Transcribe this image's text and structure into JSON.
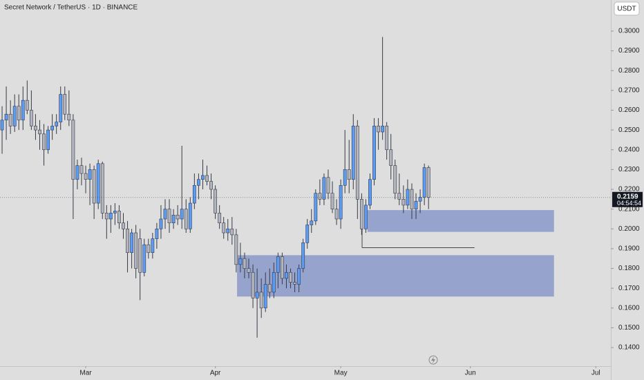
{
  "chart_data": {
    "type": "candlestick",
    "title": "Secret Network / TetherUS · 1D · BINANCE",
    "currency": "USDT",
    "countdown": "04:54:54",
    "up_color": "#5b9cf6",
    "down_color": "#b2b5be",
    "wick_color": "#363a45",
    "open": [
      0.25,
      0.255,
      0.258,
      0.252,
      0.262,
      0.255,
      0.265,
      0.26,
      0.252,
      0.25,
      0.248,
      0.24,
      0.25,
      0.252,
      0.254,
      0.268,
      0.258,
      0.255,
      0.225,
      0.232,
      0.228,
      0.225,
      0.23,
      0.213,
      0.233,
      0.208,
      0.205,
      0.208,
      0.209,
      0.203,
      0.2,
      0.188,
      0.198,
      0.195,
      0.178,
      0.192,
      0.188,
      0.195,
      0.2,
      0.205,
      0.21,
      0.203,
      0.207,
      0.205,
      0.21,
      0.2,
      0.213,
      0.222,
      0.225,
      0.227,
      0.224,
      0.22,
      0.208,
      0.203,
      0.198,
      0.2,
      0.197,
      0.182,
      0.185,
      0.18,
      0.178,
      0.165,
      0.168,
      0.16,
      0.172,
      0.168,
      0.178,
      0.186,
      0.175,
      0.178,
      0.173,
      0.172,
      0.18,
      0.193,
      0.202,
      0.204,
      0.218,
      0.215,
      0.226,
      0.218,
      0.21,
      0.205,
      0.222,
      0.23,
      0.225,
      0.252,
      0.215,
      0.2,
      0.212,
      0.225,
      0.252,
      0.249,
      0.252,
      0.24,
      0.232,
      0.218,
      0.215,
      0.212,
      0.22,
      0.21,
      0.214,
      0.216,
      0.231
    ],
    "high": [
      0.262,
      0.272,
      0.265,
      0.268,
      0.268,
      0.272,
      0.275,
      0.27,
      0.258,
      0.255,
      0.253,
      0.252,
      0.258,
      0.258,
      0.272,
      0.272,
      0.27,
      0.258,
      0.235,
      0.236,
      0.232,
      0.233,
      0.232,
      0.235,
      0.234,
      0.212,
      0.212,
      0.213,
      0.212,
      0.208,
      0.204,
      0.2,
      0.202,
      0.2,
      0.195,
      0.195,
      0.198,
      0.203,
      0.212,
      0.215,
      0.215,
      0.21,
      0.212,
      0.242,
      0.215,
      0.216,
      0.228,
      0.228,
      0.235,
      0.232,
      0.228,
      0.222,
      0.212,
      0.206,
      0.205,
      0.206,
      0.2,
      0.193,
      0.188,
      0.185,
      0.182,
      0.18,
      0.175,
      0.178,
      0.18,
      0.183,
      0.188,
      0.188,
      0.182,
      0.18,
      0.178,
      0.182,
      0.195,
      0.205,
      0.21,
      0.22,
      0.225,
      0.228,
      0.23,
      0.224,
      0.215,
      0.225,
      0.25,
      0.245,
      0.258,
      0.255,
      0.218,
      0.215,
      0.228,
      0.256,
      0.256,
      0.297,
      0.254,
      0.248,
      0.235,
      0.228,
      0.222,
      0.225,
      0.223,
      0.218,
      0.22,
      0.233,
      0.232
    ],
    "low": [
      0.238,
      0.245,
      0.248,
      0.249,
      0.25,
      0.25,
      0.258,
      0.25,
      0.245,
      0.24,
      0.232,
      0.238,
      0.245,
      0.248,
      0.25,
      0.255,
      0.252,
      0.205,
      0.22,
      0.222,
      0.218,
      0.212,
      0.205,
      0.21,
      0.205,
      0.195,
      0.198,
      0.202,
      0.2,
      0.195,
      0.178,
      0.18,
      0.175,
      0.164,
      0.176,
      0.185,
      0.185,
      0.19,
      0.195,
      0.2,
      0.198,
      0.2,
      0.202,
      0.2,
      0.198,
      0.198,
      0.21,
      0.215,
      0.22,
      0.222,
      0.215,
      0.205,
      0.2,
      0.195,
      0.194,
      0.192,
      0.178,
      0.178,
      0.175,
      0.175,
      0.16,
      0.145,
      0.155,
      0.158,
      0.165,
      0.165,
      0.17,
      0.172,
      0.17,
      0.17,
      0.168,
      0.168,
      0.178,
      0.19,
      0.198,
      0.202,
      0.212,
      0.212,
      0.215,
      0.208,
      0.202,
      0.2,
      0.218,
      0.218,
      0.22,
      0.205,
      0.197,
      0.198,
      0.21,
      0.222,
      0.24,
      0.245,
      0.235,
      0.225,
      0.215,
      0.212,
      0.208,
      0.21,
      0.205,
      0.205,
      0.208,
      0.212,
      0.21
    ],
    "close": [
      0.255,
      0.258,
      0.252,
      0.262,
      0.255,
      0.265,
      0.26,
      0.252,
      0.25,
      0.248,
      0.24,
      0.25,
      0.252,
      0.254,
      0.268,
      0.258,
      0.255,
      0.225,
      0.232,
      0.228,
      0.225,
      0.23,
      0.213,
      0.233,
      0.208,
      0.205,
      0.208,
      0.209,
      0.203,
      0.2,
      0.188,
      0.198,
      0.18,
      0.178,
      0.192,
      0.188,
      0.195,
      0.2,
      0.205,
      0.21,
      0.203,
      0.207,
      0.205,
      0.21,
      0.2,
      0.213,
      0.222,
      0.225,
      0.227,
      0.224,
      0.22,
      0.208,
      0.203,
      0.198,
      0.2,
      0.197,
      0.182,
      0.185,
      0.18,
      0.178,
      0.165,
      0.168,
      0.16,
      0.172,
      0.168,
      0.178,
      0.186,
      0.175,
      0.178,
      0.173,
      0.172,
      0.18,
      0.193,
      0.202,
      0.204,
      0.218,
      0.215,
      0.226,
      0.218,
      0.21,
      0.205,
      0.222,
      0.23,
      0.225,
      0.252,
      0.215,
      0.2,
      0.212,
      0.225,
      0.252,
      0.249,
      0.252,
      0.24,
      0.232,
      0.218,
      0.215,
      0.212,
      0.22,
      0.21,
      0.214,
      0.216,
      0.231,
      0.2159
    ],
    "xlim": [
      -0.5,
      145.6
    ],
    "xticks": [
      {
        "value": 20,
        "label": "Mar"
      },
      {
        "value": 51,
        "label": "Apr"
      },
      {
        "value": 81,
        "label": "May"
      },
      {
        "value": 112,
        "label": "Jun"
      },
      {
        "value": 142,
        "label": "Jul"
      }
    ],
    "ylim": [
      0.1306,
      0.3157
    ],
    "yticks": [
      {
        "value": 0.14,
        "label": "0.1400"
      },
      {
        "value": 0.15,
        "label": "0.1500"
      },
      {
        "value": 0.16,
        "label": "0.1600"
      },
      {
        "value": 0.17,
        "label": "0.1700"
      },
      {
        "value": 0.18,
        "label": "0.1800"
      },
      {
        "value": 0.19,
        "label": "0.1900"
      },
      {
        "value": 0.2,
        "label": "0.2000"
      },
      {
        "value": 0.21,
        "label": "0.2100"
      },
      {
        "value": 0.22,
        "label": "0.2200"
      },
      {
        "value": 0.23,
        "label": "0.2300"
      },
      {
        "value": 0.24,
        "label": "0.2400"
      },
      {
        "value": 0.25,
        "label": "0.2500"
      },
      {
        "value": 0.26,
        "label": "0.2600"
      },
      {
        "value": 0.27,
        "label": "0.2700"
      },
      {
        "value": 0.28,
        "label": "0.2800"
      },
      {
        "value": 0.29,
        "label": "0.2900"
      },
      {
        "value": 0.3,
        "label": "0.3000"
      }
    ],
    "zone_color": "#7d8fc6",
    "zones": [
      {
        "x": [
          87.4,
          132
        ],
        "y": [
          0.1985,
          0.2095
        ]
      },
      {
        "x": [
          56.2,
          132
        ],
        "y": [
          0.1658,
          0.1867
        ]
      }
    ],
    "lines": [
      {
        "x": [
          86.1,
          113
        ],
        "y": 0.1905,
        "color": "#444444"
      }
    ]
  }
}
